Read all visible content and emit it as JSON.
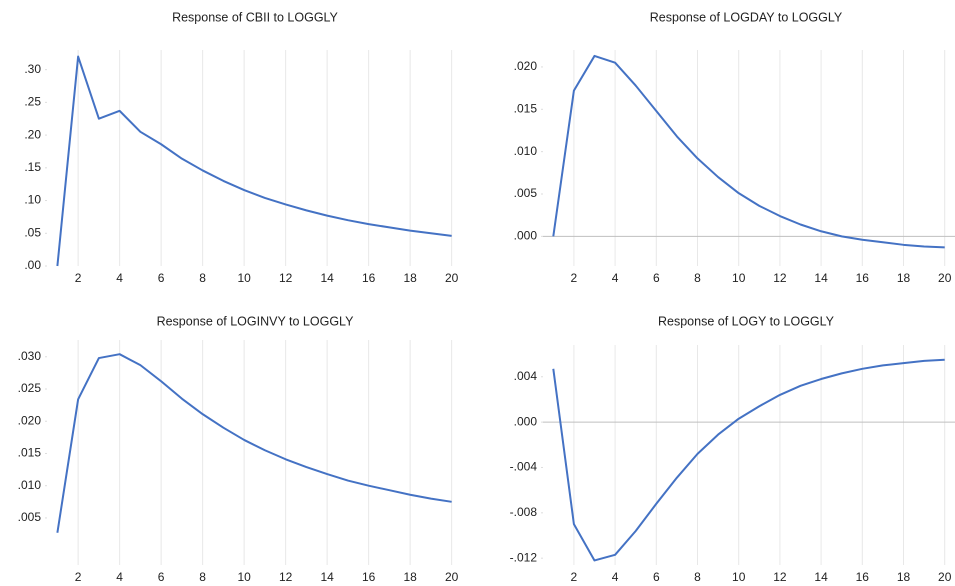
{
  "chart_data": [
    {
      "type": "line",
      "title": "Response of CBII to LOGGLY",
      "color": "#4472c4",
      "grid": true,
      "zero_line": false,
      "x": [
        1,
        2,
        3,
        4,
        5,
        6,
        7,
        8,
        9,
        10,
        11,
        12,
        13,
        14,
        15,
        16,
        17,
        18,
        19,
        20
      ],
      "values": [
        0.0,
        0.32,
        0.225,
        0.237,
        0.205,
        0.186,
        0.164,
        0.146,
        0.13,
        0.116,
        0.104,
        0.094,
        0.085,
        0.077,
        0.07,
        0.064,
        0.059,
        0.054,
        0.05,
        0.046
      ],
      "xlim": [
        0.5,
        20.5
      ],
      "xticks": [
        2,
        4,
        6,
        8,
        10,
        12,
        14,
        16,
        18,
        20
      ],
      "ylim": [
        0,
        0.33
      ],
      "yticks": [
        {
          "value": 0,
          "label": ".00"
        },
        {
          "value": 0.05,
          "label": ".05"
        },
        {
          "value": 0.1,
          "label": ".10"
        },
        {
          "value": 0.15,
          "label": ".15"
        },
        {
          "value": 0.2,
          "label": ".20"
        },
        {
          "value": 0.25,
          "label": ".25"
        },
        {
          "value": 0.3,
          "label": ".30"
        }
      ]
    },
    {
      "type": "line",
      "title": "Response of LOGDAY to LOGGLY",
      "color": "#4472c4",
      "grid": true,
      "zero_line": true,
      "x": [
        1,
        2,
        3,
        4,
        5,
        6,
        7,
        8,
        9,
        10,
        11,
        12,
        13,
        14,
        15,
        16,
        17,
        18,
        19,
        20
      ],
      "values": [
        0.0,
        0.0172,
        0.0213,
        0.0205,
        0.0178,
        0.0148,
        0.0118,
        0.0092,
        0.007,
        0.0051,
        0.0036,
        0.0024,
        0.0014,
        0.0006,
        0.0,
        -0.0004,
        -0.0007,
        -0.001,
        -0.0012,
        -0.0013
      ],
      "xlim": [
        0.5,
        20.5
      ],
      "xticks": [
        2,
        4,
        6,
        8,
        10,
        12,
        14,
        16,
        18,
        20
      ],
      "ylim": [
        -0.0035,
        0.022
      ],
      "yticks": [
        {
          "value": 0,
          "label": ".000"
        },
        {
          "value": 0.005,
          "label": ".005"
        },
        {
          "value": 0.01,
          "label": ".010"
        },
        {
          "value": 0.015,
          "label": ".015"
        },
        {
          "value": 0.02,
          "label": ".020"
        }
      ]
    },
    {
      "type": "line",
      "title": "Response of LOGINVY to LOGGLY",
      "color": "#4472c4",
      "grid": true,
      "zero_line": false,
      "x": [
        1,
        2,
        3,
        4,
        5,
        6,
        7,
        8,
        9,
        10,
        11,
        12,
        13,
        14,
        15,
        16,
        17,
        18,
        19,
        20
      ],
      "values": [
        0.0027,
        0.0234,
        0.0298,
        0.0304,
        0.0287,
        0.0262,
        0.0235,
        0.0211,
        0.019,
        0.0171,
        0.0155,
        0.0141,
        0.0129,
        0.0118,
        0.0108,
        0.01,
        0.0093,
        0.0086,
        0.008,
        0.0075
      ],
      "xlim": [
        0.5,
        20.5
      ],
      "xticks": [
        2,
        4,
        6,
        8,
        10,
        12,
        14,
        16,
        18,
        20
      ],
      "ylim": [
        -0.0023,
        0.0326
      ],
      "yticks": [
        {
          "value": 0.005,
          "label": ".005"
        },
        {
          "value": 0.01,
          "label": ".010"
        },
        {
          "value": 0.015,
          "label": ".015"
        },
        {
          "value": 0.02,
          "label": ".020"
        },
        {
          "value": 0.025,
          "label": ".025"
        },
        {
          "value": 0.03,
          "label": ".030"
        }
      ]
    },
    {
      "type": "line",
      "title": "Response of LOGY to LOGGLY",
      "color": "#4472c4",
      "grid": true,
      "zero_line": true,
      "x": [
        1,
        2,
        3,
        4,
        5,
        6,
        7,
        8,
        9,
        10,
        11,
        12,
        13,
        14,
        15,
        16,
        17,
        18,
        19,
        20
      ],
      "values": [
        0.0047,
        -0.009,
        -0.0122,
        -0.0117,
        -0.0096,
        -0.0072,
        -0.0049,
        -0.0028,
        -0.0011,
        0.0003,
        0.0014,
        0.0024,
        0.0032,
        0.0038,
        0.0043,
        0.0047,
        0.005,
        0.0052,
        0.0054,
        0.0055
      ],
      "xlim": [
        0.5,
        20.5
      ],
      "xticks": [
        2,
        4,
        6,
        8,
        10,
        12,
        14,
        16,
        18,
        20
      ],
      "ylim": [
        -0.0126,
        0.0068
      ],
      "yticks": [
        {
          "value": -0.012,
          "label": "-.012"
        },
        {
          "value": -0.008,
          "label": "-.008"
        },
        {
          "value": -0.004,
          "label": "-.004"
        },
        {
          "value": 0,
          "label": ".000"
        },
        {
          "value": 0.004,
          "label": ".004"
        }
      ]
    }
  ]
}
